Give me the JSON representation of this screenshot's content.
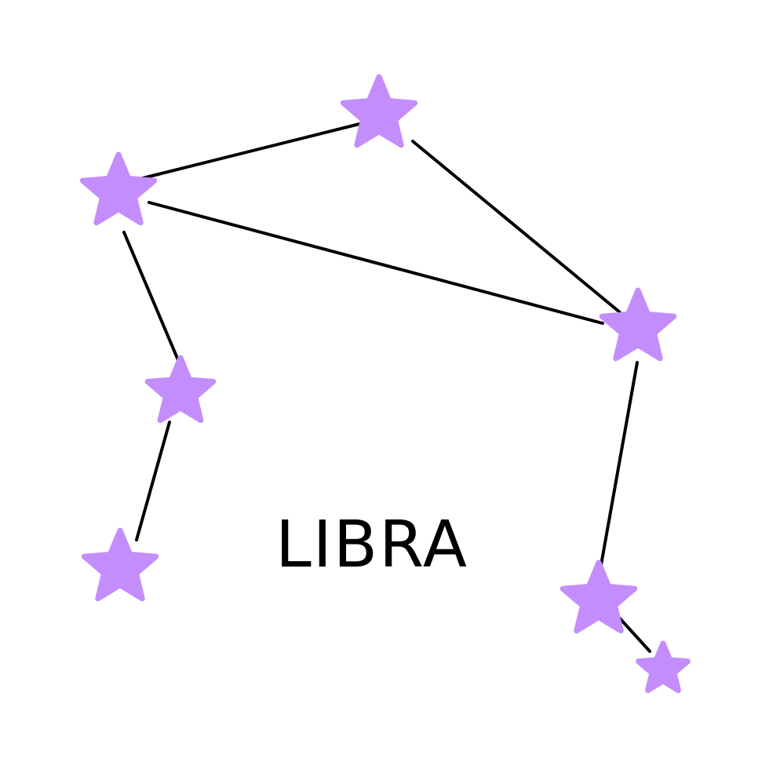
{
  "title": "LIBRA",
  "colors": {
    "star": "#c48dfc",
    "line": "#000000",
    "background": "#ffffff",
    "text": "#000000"
  },
  "icons": {
    "star": "star-icon"
  }
}
